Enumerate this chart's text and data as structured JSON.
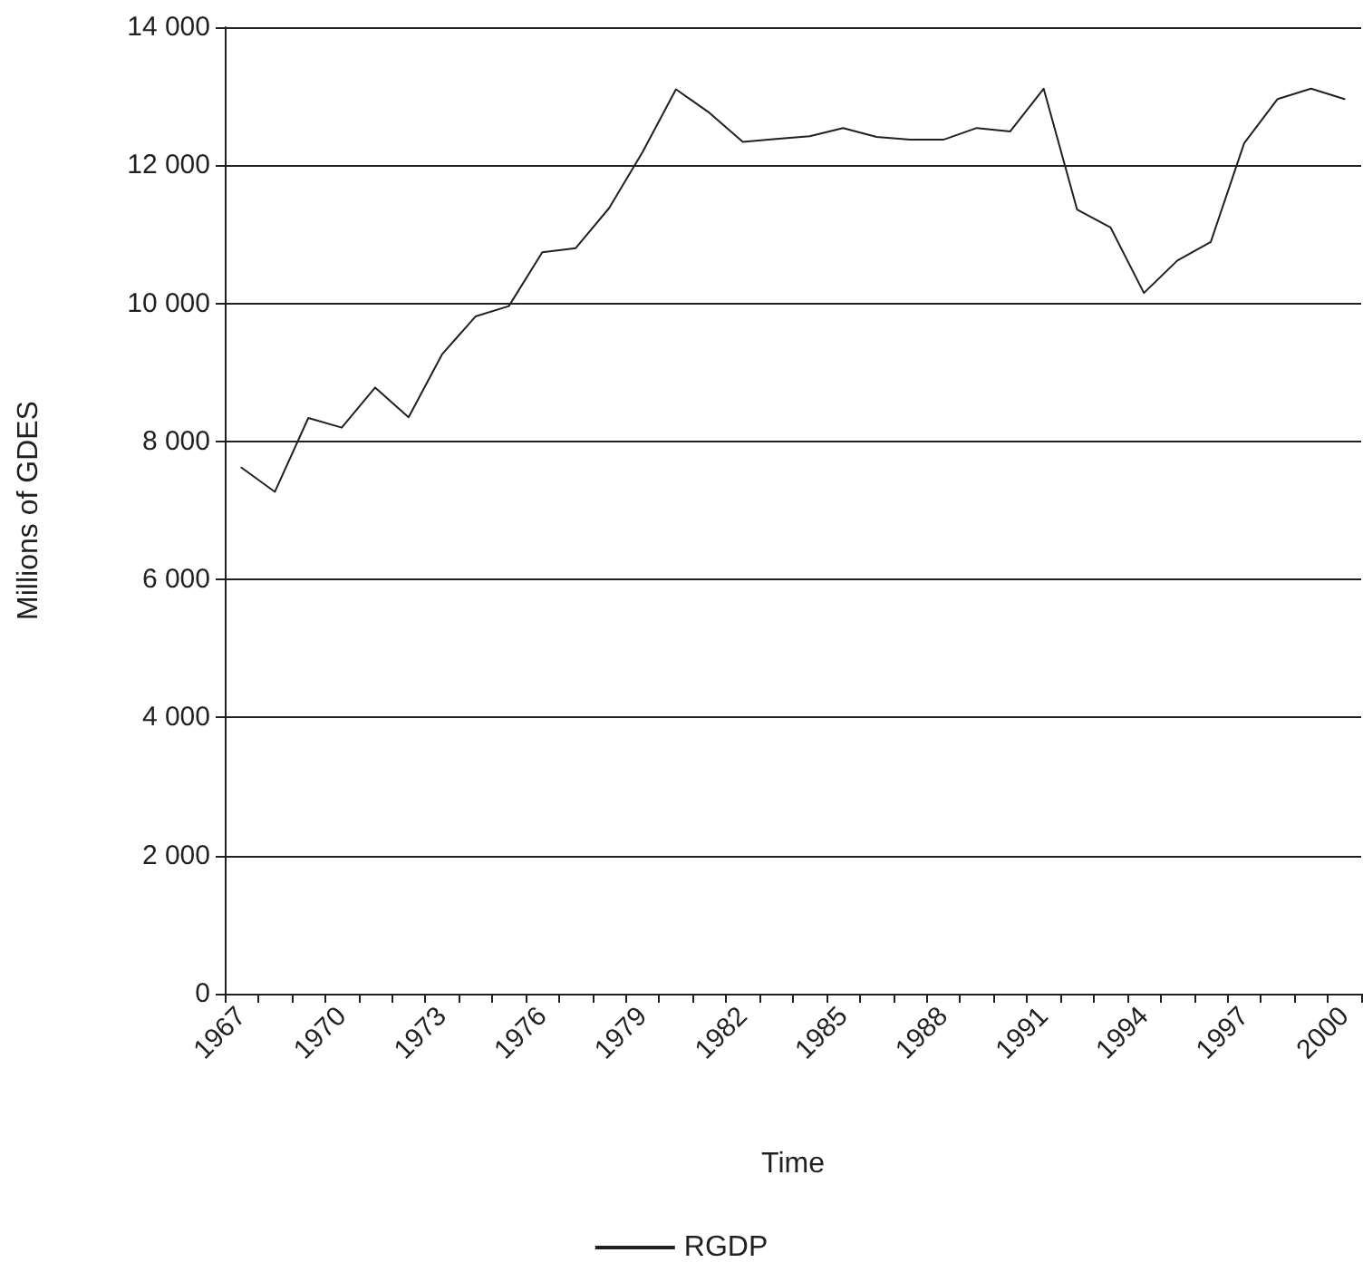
{
  "chart_data": {
    "type": "line",
    "xlabel": "Time",
    "ylabel": "Millions of GDES",
    "categories": [
      "1967",
      null,
      null,
      "1970",
      null,
      null,
      "1973",
      null,
      null,
      "1976",
      null,
      null,
      "1979",
      null,
      null,
      "1982",
      null,
      null,
      "1985",
      null,
      null,
      "1988",
      null,
      null,
      "1991",
      null,
      null,
      "1994",
      null,
      null,
      "1997",
      null,
      null,
      "2000"
    ],
    "series": [
      {
        "name": "RGDP",
        "color": "#231f20",
        "values": [
          7620,
          7270,
          8340,
          8200,
          8780,
          8350,
          9260,
          9810,
          9960,
          10740,
          10800,
          11380,
          12190,
          13100,
          12760,
          12340,
          12380,
          12420,
          12540,
          12410,
          12370,
          12370,
          12540,
          12490,
          13110,
          11360,
          11100,
          10150,
          10620,
          10890,
          12320,
          12960,
          13110,
          12960
        ]
      }
    ],
    "ylim": [
      0,
      14000
    ],
    "yticks": [
      {
        "value": 0,
        "label": "0"
      },
      {
        "value": 2000,
        "label": "2 000"
      },
      {
        "value": 4000,
        "label": "4 000"
      },
      {
        "value": 6000,
        "label": "6 000"
      },
      {
        "value": 8000,
        "label": "8 000"
      },
      {
        "value": 10000,
        "label": "10 000"
      },
      {
        "value": 12000,
        "label": "12 000"
      },
      {
        "value": 14000,
        "label": "14 000"
      }
    ],
    "grid": "y",
    "legend": "bottom",
    "marker": "none",
    "line_style": "solid"
  }
}
